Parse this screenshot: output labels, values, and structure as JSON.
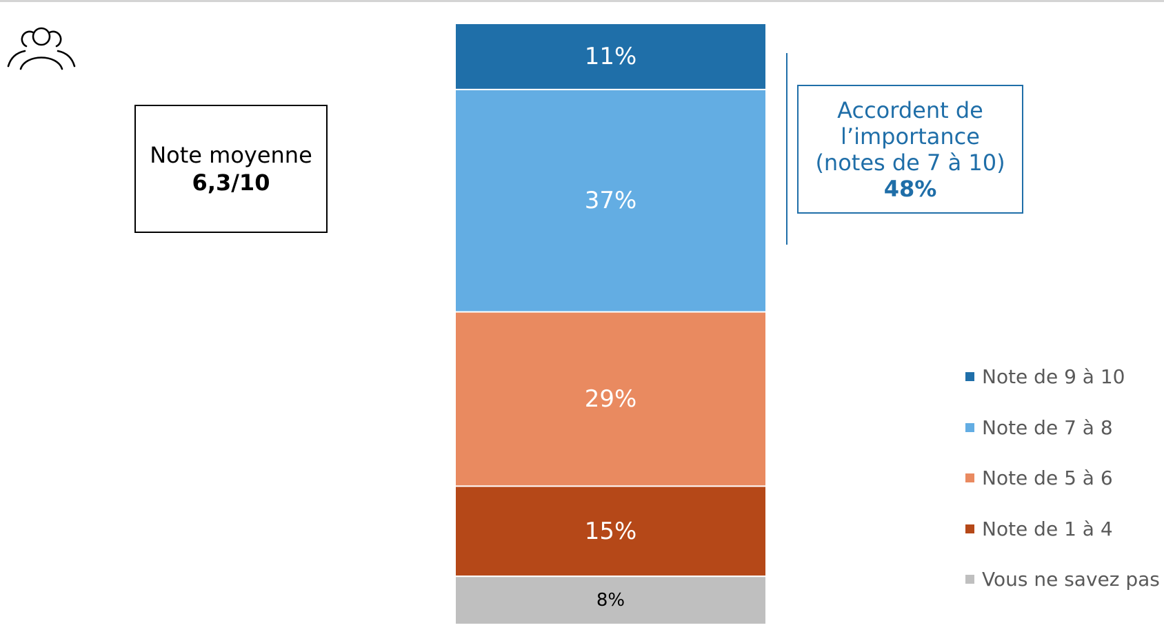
{
  "summary": {
    "mean_label": "Note moyenne",
    "mean_value": "6,3/10",
    "importance_lines": [
      "Accordent de",
      "l’importance",
      "(notes de 7 à 10)"
    ],
    "importance_value": "48%"
  },
  "icons": {
    "top_left": "people-group-icon"
  },
  "colors": {
    "accent": "#1f6ea8"
  },
  "chart_data": {
    "type": "bar",
    "stacked": true,
    "orientation": "vertical",
    "categories": [
      ""
    ],
    "series": [
      {
        "name": "Note de 9 à 10",
        "values": [
          11
        ],
        "label": "11%",
        "color": "#1f6fa9"
      },
      {
        "name": "Note de 7 à 8",
        "values": [
          37
        ],
        "label": "37%",
        "color": "#63ade3"
      },
      {
        "name": "Note de 5 à 6",
        "values": [
          29
        ],
        "label": "29%",
        "color": "#e98a60"
      },
      {
        "name": "Note de 1 à 4",
        "values": [
          15
        ],
        "label": "15%",
        "color": "#b54818"
      },
      {
        "name": "Vous ne savez pas",
        "values": [
          8
        ],
        "label": "8%",
        "color": "#bfbfbf"
      }
    ],
    "legend_position": "right",
    "legend_order": [
      "Note de 9 à 10",
      "Note de 7 à 8",
      "Note de 5 à 6",
      "Note de 1 à 4",
      "Vous ne savez pas"
    ],
    "title": "",
    "xlabel": "",
    "ylabel": "",
    "grid": false
  }
}
